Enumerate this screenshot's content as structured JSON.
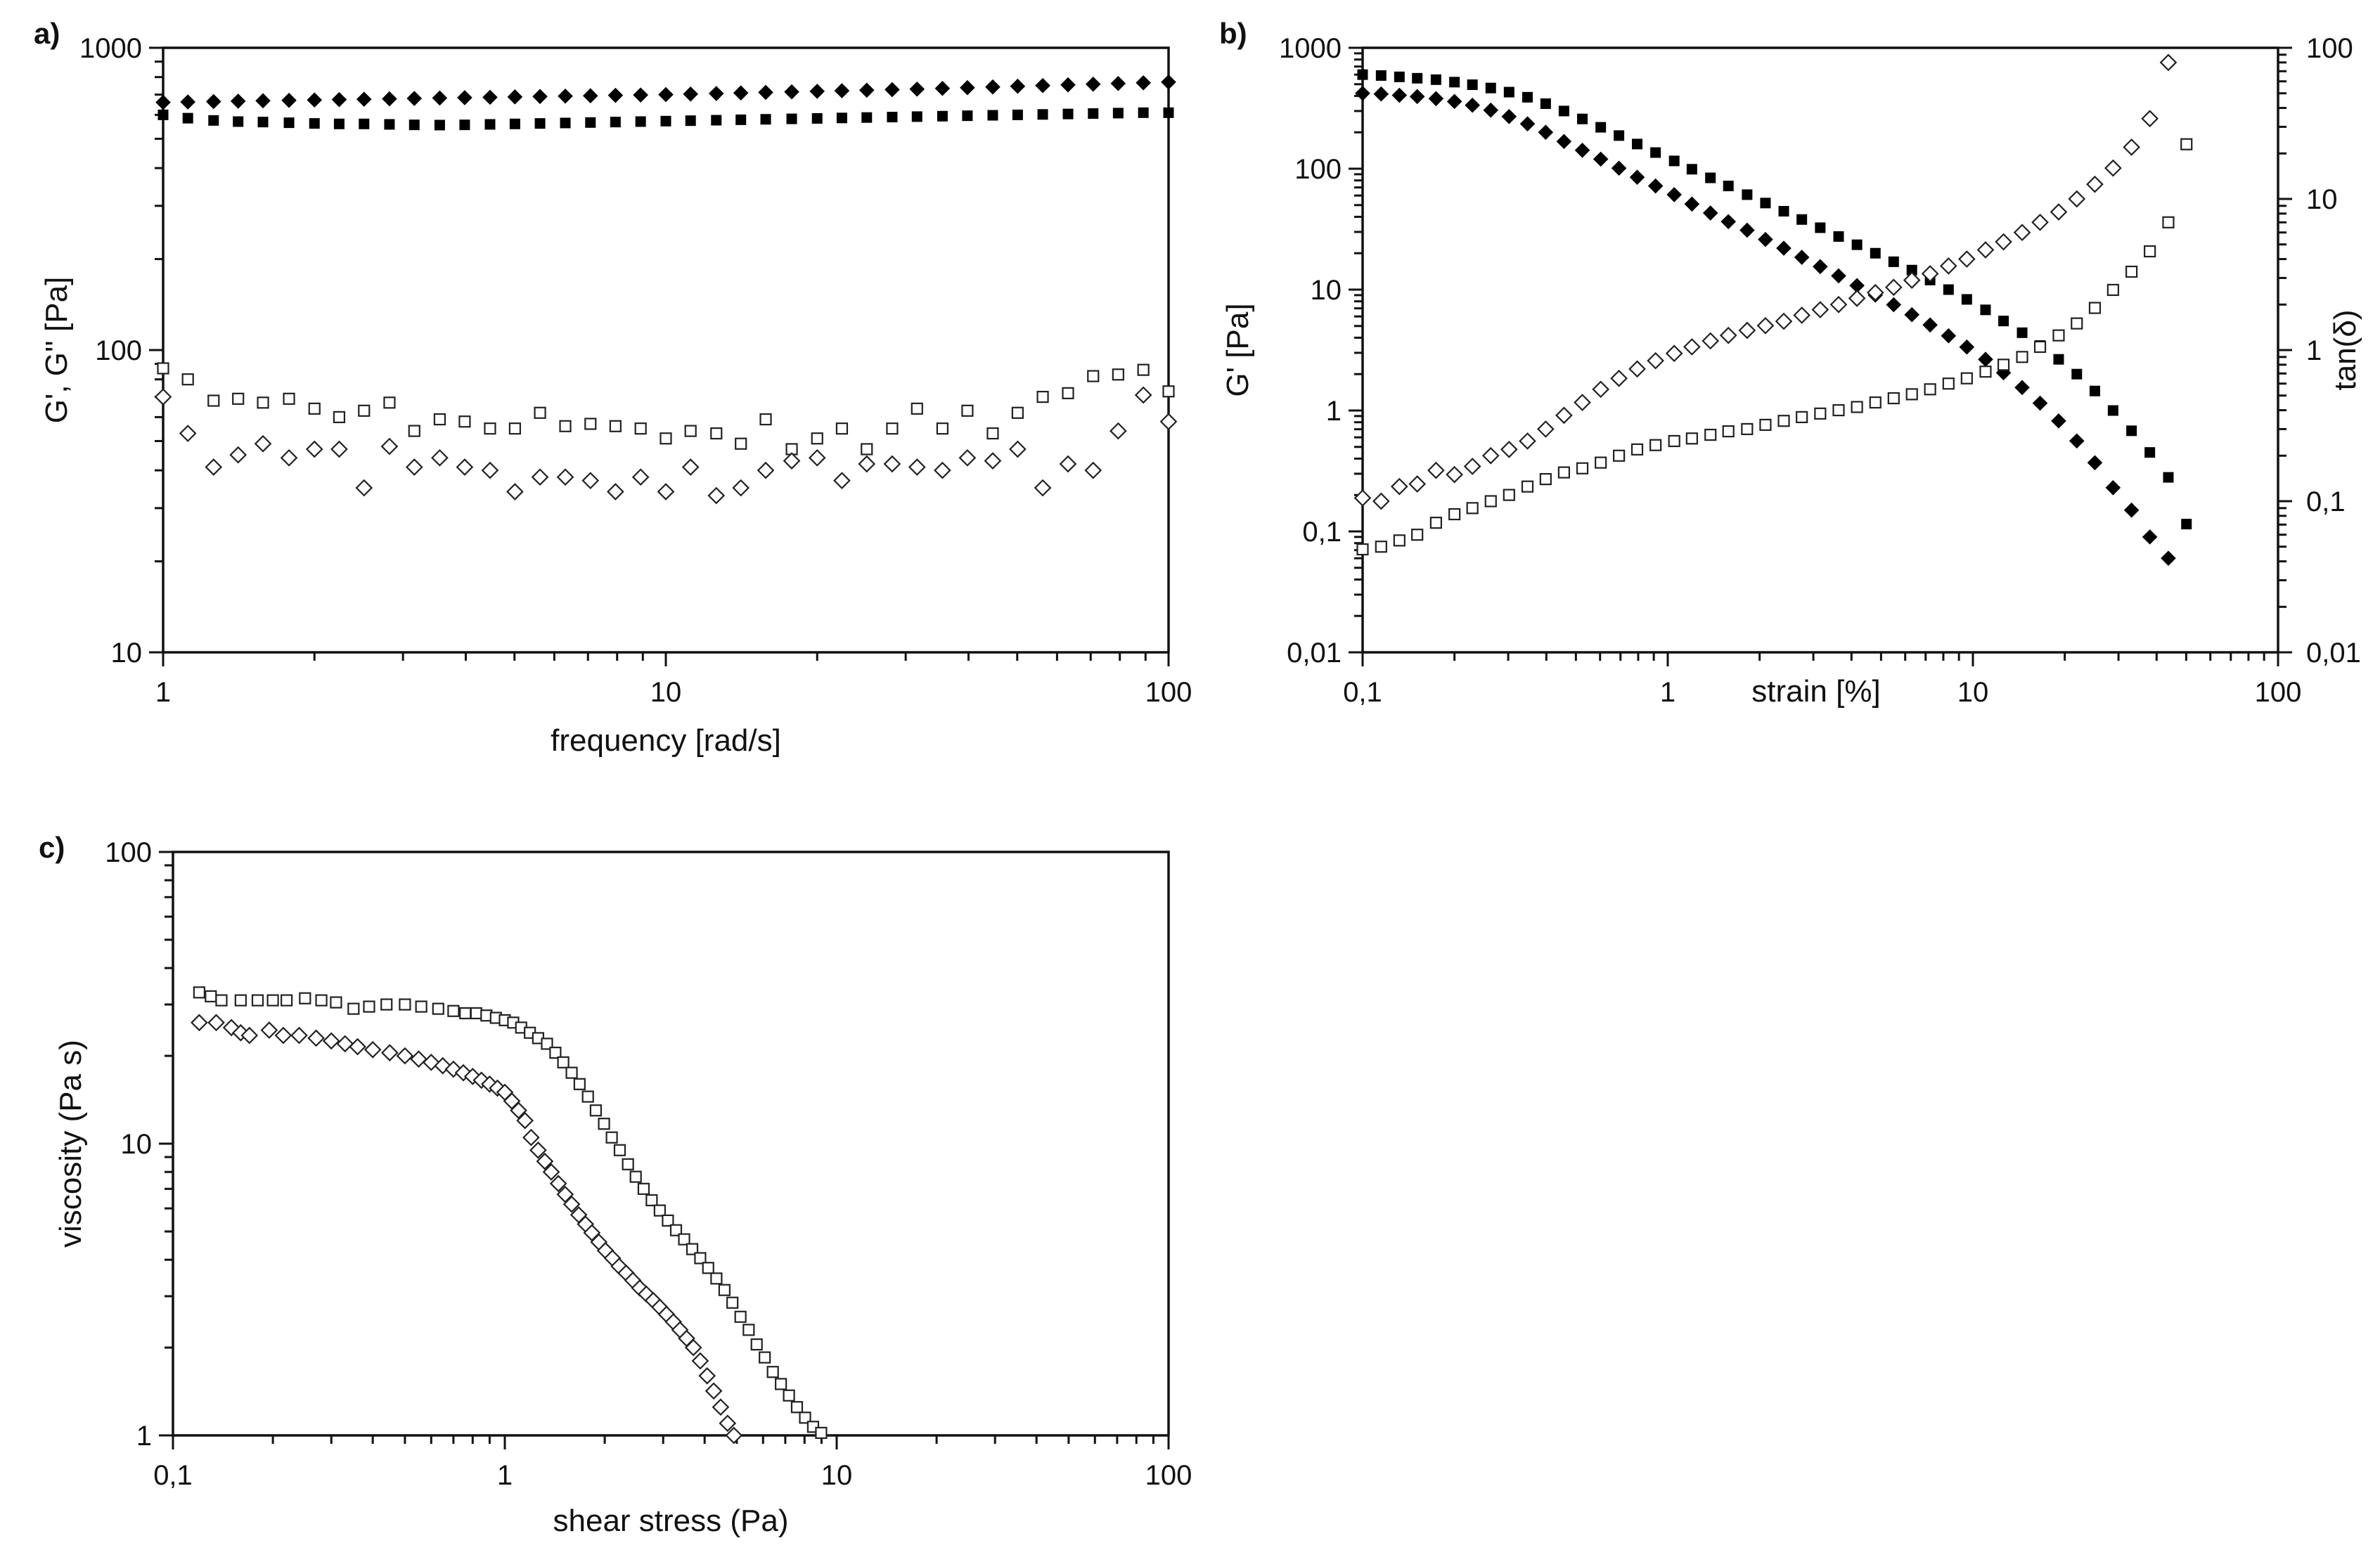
{
  "chart_data": [
    {
      "panel": "a)",
      "type": "scatter",
      "xlabel": "frequency [rad/s]",
      "ylabel": "G', G'' [Pa]",
      "xscale": "log",
      "yscale": "log",
      "xlim": [
        1,
        100
      ],
      "ylim": [
        10,
        1000
      ],
      "x_ticks": [
        "1",
        "10",
        "100"
      ],
      "y_ticks": [
        "10",
        "100",
        "1000"
      ],
      "series": [
        {
          "marker": "filled-diamond",
          "x": [
            1,
            1.12,
            1.26,
            1.41,
            1.58,
            1.78,
            2,
            2.24,
            2.51,
            2.82,
            3.16,
            3.55,
            3.98,
            4.47,
            5.01,
            5.62,
            6.31,
            7.08,
            7.94,
            8.91,
            10,
            11.2,
            12.6,
            14.1,
            15.8,
            17.8,
            20,
            22.4,
            25.1,
            28.2,
            31.6,
            35.5,
            39.8,
            44.7,
            50.1,
            56.2,
            63.1,
            70.8,
            79.4,
            89.1,
            100
          ],
          "y": [
            660,
            662,
            664,
            666,
            668,
            670,
            672,
            674,
            676,
            678,
            680,
            682,
            684,
            686,
            688,
            690,
            692,
            694,
            696,
            698,
            700,
            703,
            706,
            709,
            712,
            715,
            718,
            721,
            724,
            727,
            730,
            734,
            738,
            742,
            746,
            750,
            754,
            758,
            762,
            766,
            770
          ]
        },
        {
          "marker": "filled-square",
          "x": [
            1,
            1.12,
            1.26,
            1.41,
            1.58,
            1.78,
            2,
            2.24,
            2.51,
            2.82,
            3.16,
            3.55,
            3.98,
            4.47,
            5.01,
            5.62,
            6.31,
            7.08,
            7.94,
            8.91,
            10,
            11.2,
            12.6,
            14.1,
            15.8,
            17.8,
            20,
            22.4,
            25.1,
            28.2,
            31.6,
            35.5,
            39.8,
            44.7,
            50.1,
            56.2,
            63.1,
            70.8,
            79.4,
            89.1,
            100
          ],
          "y": [
            600,
            585,
            575,
            570,
            568,
            565,
            562,
            560,
            560,
            558,
            556,
            555,
            556,
            558,
            560,
            562,
            564,
            566,
            568,
            570,
            572,
            574,
            576,
            578,
            580,
            582,
            584,
            586,
            588,
            590,
            592,
            594,
            596,
            598,
            600,
            602,
            604,
            606,
            608,
            610,
            610
          ]
        },
        {
          "marker": "open-square",
          "x": [
            1,
            1.12,
            1.26,
            1.41,
            1.58,
            1.78,
            2,
            2.24,
            2.51,
            2.82,
            3.16,
            3.55,
            3.98,
            4.47,
            5.01,
            5.62,
            6.31,
            7.08,
            7.94,
            8.91,
            10,
            11.2,
            12.6,
            14.1,
            15.8,
            17.8,
            20,
            22.4,
            25.1,
            28.2,
            31.6,
            35.5,
            39.8,
            44.7,
            50.1,
            56.2,
            63.1,
            70.8,
            79.4,
            89.1,
            100
          ],
          "y": [
            87,
            80,
            68,
            69,
            67,
            69,
            64,
            60,
            63,
            67,
            54,
            59,
            58,
            55,
            55,
            62,
            56,
            57,
            56,
            55,
            51,
            54,
            53,
            49,
            59,
            47,
            51,
            55,
            47,
            55,
            64,
            55,
            63,
            53,
            62,
            70,
            72,
            82,
            83,
            86,
            73
          ]
        },
        {
          "marker": "open-diamond",
          "x": [
            1,
            1.12,
            1.26,
            1.41,
            1.58,
            1.78,
            2,
            2.24,
            2.51,
            2.82,
            3.16,
            3.55,
            3.98,
            4.47,
            5.01,
            5.62,
            6.31,
            7.08,
            7.94,
            8.91,
            10,
            11.2,
            12.6,
            14.1,
            15.8,
            17.8,
            20,
            22.4,
            25.1,
            28.2,
            31.6,
            35.5,
            39.8,
            44.7,
            50.1,
            56.2,
            63.1,
            70.8,
            79.4,
            89.1,
            100
          ],
          "y": [
            70,
            53,
            41,
            45,
            49,
            44,
            47,
            47,
            35,
            48,
            41,
            44,
            41,
            40,
            34,
            38,
            38,
            37,
            34,
            38,
            34,
            41,
            33,
            35,
            40,
            43,
            44,
            37,
            42,
            42,
            41,
            40,
            44,
            43,
            47,
            35,
            42,
            40,
            54,
            71,
            58
          ]
        }
      ]
    },
    {
      "panel": "b)",
      "type": "scatter",
      "xlabel": "strain [%]",
      "ylabel": "G' [Pa]",
      "y2label": "tan(δ)",
      "xscale": "log",
      "yscale": "log",
      "xlim": [
        0.1,
        100
      ],
      "ylim": [
        0.01,
        1000
      ],
      "y2lim": [
        0.01,
        100
      ],
      "x_ticks": [
        "0,1",
        "1",
        "10",
        "100"
      ],
      "y_ticks": [
        "0,01",
        "0,1",
        "1",
        "10",
        "100",
        "1000"
      ],
      "y2_ticks": [
        "0,01",
        "0,1",
        "1",
        "10",
        "100"
      ],
      "series": [
        {
          "marker": "filled-square",
          "axis": "left",
          "x": [
            0.1,
            0.115,
            0.132,
            0.151,
            0.174,
            0.2,
            0.229,
            0.263,
            0.302,
            0.347,
            0.398,
            0.457,
            0.525,
            0.603,
            0.692,
            0.794,
            0.912,
            1.05,
            1.2,
            1.38,
            1.58,
            1.82,
            2.09,
            2.4,
            2.75,
            3.16,
            3.63,
            4.17,
            4.79,
            5.5,
            6.31,
            7.24,
            8.32,
            9.55,
            11,
            12.6,
            14.5,
            16.6,
            19.1,
            21.9,
            25.1,
            28.8,
            33.1,
            38,
            43.7,
            50.1
          ],
          "y": [
            600,
            590,
            575,
            560,
            545,
            520,
            495,
            465,
            430,
            390,
            345,
            300,
            258,
            220,
            188,
            160,
            136,
            116,
            99,
            84,
            72,
            61,
            52,
            44.5,
            38,
            32.5,
            27.5,
            23.5,
            20,
            17,
            14.5,
            12,
            10,
            8.3,
            6.8,
            5.5,
            4.4,
            3.45,
            2.65,
            2,
            1.45,
            1,
            0.68,
            0.45,
            0.28,
            0.115
          ]
        },
        {
          "marker": "filled-diamond",
          "axis": "left",
          "x": [
            0.1,
            0.115,
            0.132,
            0.151,
            0.174,
            0.2,
            0.229,
            0.263,
            0.302,
            0.347,
            0.398,
            0.457,
            0.525,
            0.603,
            0.692,
            0.794,
            0.912,
            1.05,
            1.2,
            1.38,
            1.58,
            1.82,
            2.09,
            2.4,
            2.75,
            3.16,
            3.63,
            4.17,
            4.79,
            5.5,
            6.31,
            7.24,
            8.32,
            9.55,
            11,
            12.6,
            14.5,
            16.6,
            19.1,
            21.9,
            25.1,
            28.8,
            33.1,
            38,
            43.7
          ],
          "y": [
            420,
            415,
            405,
            395,
            380,
            360,
            335,
            305,
            270,
            235,
            200,
            168,
            142,
            120,
            101,
            85,
            72,
            61,
            51,
            43,
            36.5,
            31,
            26,
            22,
            18.5,
            15.5,
            13,
            10.8,
            9,
            7.5,
            6.2,
            5.1,
            4.15,
            3.35,
            2.65,
            2.05,
            1.55,
            1.15,
            0.82,
            0.56,
            0.37,
            0.23,
            0.15,
            0.09,
            0.06
          ]
        },
        {
          "marker": "open-diamond",
          "axis": "right",
          "x": [
            0.1,
            0.115,
            0.132,
            0.151,
            0.174,
            0.2,
            0.229,
            0.263,
            0.302,
            0.347,
            0.398,
            0.457,
            0.525,
            0.603,
            0.692,
            0.794,
            0.912,
            1.05,
            1.2,
            1.38,
            1.58,
            1.82,
            2.09,
            2.4,
            2.75,
            3.16,
            3.63,
            4.17,
            4.79,
            5.5,
            6.31,
            7.24,
            8.32,
            9.55,
            11,
            12.6,
            14.5,
            16.6,
            19.1,
            21.9,
            25.1,
            28.8,
            33.1,
            38,
            43.7
          ],
          "y": [
            0.105,
            0.1,
            0.125,
            0.13,
            0.16,
            0.15,
            0.17,
            0.2,
            0.22,
            0.25,
            0.3,
            0.37,
            0.45,
            0.55,
            0.65,
            0.75,
            0.85,
            0.95,
            1.05,
            1.15,
            1.25,
            1.35,
            1.45,
            1.55,
            1.7,
            1.85,
            2,
            2.2,
            2.4,
            2.6,
            2.9,
            3.2,
            3.6,
            4,
            4.6,
            5.2,
            6,
            7,
            8.2,
            10,
            12.5,
            16,
            22,
            34,
            80
          ]
        },
        {
          "marker": "open-square",
          "axis": "right",
          "x": [
            0.1,
            0.115,
            0.132,
            0.151,
            0.174,
            0.2,
            0.229,
            0.263,
            0.302,
            0.347,
            0.398,
            0.457,
            0.525,
            0.603,
            0.692,
            0.794,
            0.912,
            1.05,
            1.2,
            1.38,
            1.58,
            1.82,
            2.09,
            2.4,
            2.75,
            3.16,
            3.63,
            4.17,
            4.79,
            5.5,
            6.31,
            7.24,
            8.32,
            9.55,
            11,
            12.6,
            14.5,
            16.6,
            19.1,
            21.9,
            25.1,
            28.8,
            33.1,
            38,
            43.7,
            50.1
          ],
          "y": [
            0.048,
            0.05,
            0.055,
            0.06,
            0.072,
            0.082,
            0.09,
            0.1,
            0.11,
            0.125,
            0.14,
            0.155,
            0.165,
            0.18,
            0.2,
            0.22,
            0.235,
            0.25,
            0.26,
            0.275,
            0.29,
            0.3,
            0.32,
            0.34,
            0.36,
            0.38,
            0.4,
            0.42,
            0.45,
            0.48,
            0.51,
            0.55,
            0.6,
            0.65,
            0.72,
            0.8,
            0.9,
            1.05,
            1.25,
            1.5,
            1.9,
            2.5,
            3.3,
            4.5,
            7,
            23
          ]
        }
      ]
    },
    {
      "panel": "c)",
      "type": "scatter",
      "xlabel": "shear stress (Pa)",
      "ylabel": "viscosity (Pa s)",
      "xscale": "log",
      "yscale": "log",
      "xlim": [
        0.1,
        100
      ],
      "ylim": [
        1,
        100
      ],
      "x_ticks": [
        "0,1",
        "1",
        "10",
        "100"
      ],
      "y_ticks": [
        "1",
        "10",
        "100"
      ],
      "series": [
        {
          "marker": "open-square",
          "x": [
            0.12,
            0.13,
            0.14,
            0.16,
            0.18,
            0.2,
            0.22,
            0.25,
            0.28,
            0.31,
            0.35,
            0.39,
            0.44,
            0.5,
            0.56,
            0.63,
            0.7,
            0.76,
            0.82,
            0.88,
            0.94,
            1,
            1.06,
            1.12,
            1.19,
            1.26,
            1.34,
            1.42,
            1.5,
            1.59,
            1.68,
            1.78,
            1.88,
            1.99,
            2.1,
            2.22,
            2.35,
            2.48,
            2.62,
            2.77,
            2.93,
            3.1,
            3.28,
            3.47,
            3.67,
            3.88,
            4.1,
            4.34,
            4.59,
            4.85,
            5.13,
            5.43,
            5.74,
            6.07,
            6.42,
            6.79,
            7.18,
            7.59,
            8.03,
            8.49,
            8.98,
            9.5
          ],
          "y": [
            33,
            32,
            31,
            31,
            31,
            31,
            31,
            31.5,
            31,
            30.5,
            29,
            29.5,
            30,
            30,
            29.5,
            29,
            28.5,
            28,
            28,
            27.5,
            27,
            26.5,
            26,
            25,
            24,
            23,
            22,
            20.5,
            19,
            17.5,
            16,
            14.5,
            13,
            11.7,
            10.5,
            9.5,
            8.5,
            7.7,
            7,
            6.4,
            5.9,
            5.45,
            5.05,
            4.7,
            4.35,
            4.05,
            3.75,
            3.45,
            3.15,
            2.85,
            2.55,
            2.3,
            2.05,
            1.85,
            1.65,
            1.5,
            1.37,
            1.25,
            1.15,
            1.07,
            1.02,
            0.98
          ]
        },
        {
          "marker": "open-diamond",
          "x": [
            0.12,
            0.135,
            0.15,
            0.16,
            0.17,
            0.195,
            0.215,
            0.24,
            0.27,
            0.3,
            0.33,
            0.36,
            0.4,
            0.45,
            0.5,
            0.55,
            0.6,
            0.65,
            0.7,
            0.75,
            0.8,
            0.85,
            0.9,
            0.95,
            1,
            1.05,
            1.1,
            1.15,
            1.2,
            1.26,
            1.32,
            1.38,
            1.45,
            1.52,
            1.59,
            1.67,
            1.75,
            1.83,
            1.92,
            2.01,
            2.11,
            2.21,
            2.32,
            2.43,
            2.55,
            2.67,
            2.8,
            2.93,
            3.07,
            3.22,
            3.37,
            3.53,
            3.7,
            3.88,
            4.07,
            4.26,
            4.47,
            4.69,
            4.9
          ],
          "y": [
            26,
            26,
            25,
            24,
            23.5,
            24.5,
            23.5,
            23.5,
            23,
            22.5,
            22,
            21.5,
            21,
            20.5,
            20,
            19.5,
            19,
            18.5,
            18,
            17.5,
            17,
            16.5,
            16,
            15.5,
            15,
            14,
            13,
            12,
            10.5,
            9.5,
            8.7,
            8,
            7.3,
            6.7,
            6.2,
            5.7,
            5.3,
            4.95,
            4.6,
            4.3,
            4.05,
            3.8,
            3.6,
            3.4,
            3.2,
            3.05,
            2.9,
            2.75,
            2.6,
            2.45,
            2.3,
            2.15,
            2,
            1.8,
            1.6,
            1.42,
            1.25,
            1.1,
            1
          ]
        }
      ]
    }
  ]
}
